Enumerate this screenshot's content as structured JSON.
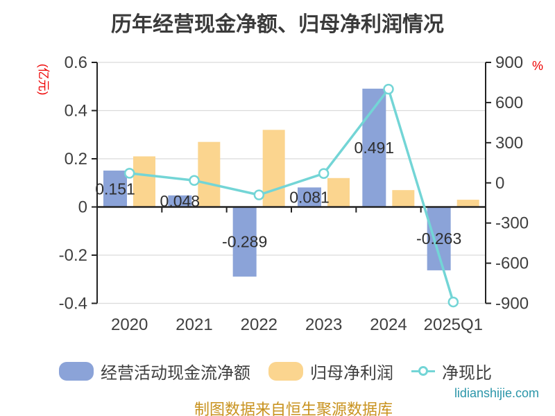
{
  "title": "历年经营现金净额、归母净利润情况",
  "chart_data": {
    "type": "bar",
    "subtype": "dual-axis bar + line combo",
    "categories": [
      "2020",
      "2021",
      "2022",
      "2023",
      "2024",
      "2025Q1"
    ],
    "series": [
      {
        "name": "经营活动现金流净额",
        "type": "bar",
        "axis": "left",
        "color": "#8ba3d8",
        "values": [
          0.151,
          0.048,
          -0.289,
          0.081,
          0.491,
          -0.263
        ],
        "data_labels": [
          "0.151",
          "0.048",
          "-0.289",
          "0.081",
          "0.491",
          "-0.263"
        ]
      },
      {
        "name": "归母净利润",
        "type": "bar",
        "axis": "left",
        "color": "#fbd58f",
        "values": [
          0.21,
          0.27,
          0.32,
          0.12,
          0.07,
          0.03
        ]
      },
      {
        "name": "净现比",
        "type": "line",
        "axis": "right",
        "color": "#73d5d6",
        "marker": "circle",
        "values": [
          72,
          18,
          -90,
          70,
          700,
          -890
        ]
      }
    ],
    "left_axis": {
      "name": "(亿元)",
      "name_color": "#ee0000",
      "min": -0.4,
      "max": 0.6,
      "ticks": [
        0.6,
        0.4,
        0.2,
        0,
        -0.2,
        -0.4
      ]
    },
    "right_axis": {
      "name": "%",
      "name_color": "#ee0000",
      "min": -900,
      "max": 900,
      "ticks": [
        900,
        600,
        300,
        0,
        -300,
        -600,
        -900
      ]
    },
    "grid": true,
    "legend_position": "bottom"
  },
  "legend": {
    "items": [
      {
        "label": "经营活动现金流净额",
        "swatch": "bar",
        "color": "#8ba3d8"
      },
      {
        "label": "归母净利润",
        "swatch": "bar",
        "color": "#fbd58f"
      },
      {
        "label": "净现比",
        "swatch": "line-marker",
        "color": "#73d5d6"
      }
    ]
  },
  "footer": {
    "source_text": "制图数据来自恒生聚源数据库",
    "source_color": "#c8921e",
    "watermark": "lidianshijie.com",
    "watermark_color": "#2b96a9"
  },
  "style": {
    "grid_color": "#dadada",
    "axis_color": "#222222",
    "tick_label_color": "#3f3f3f",
    "bar_label_color": "#2e2e2e"
  }
}
